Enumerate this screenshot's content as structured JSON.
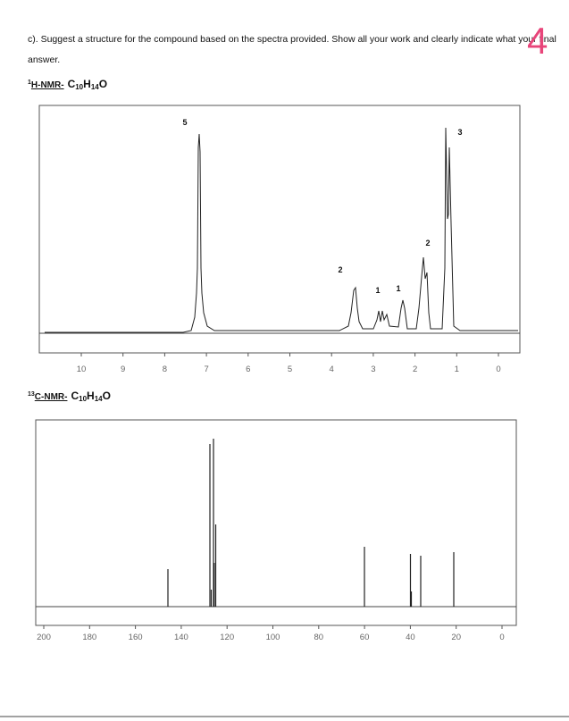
{
  "question": {
    "line1": "c).  Suggest a structure for the compound based on the spectra provided. Show all your work and clearly indicate what your final",
    "line2": "answer."
  },
  "page_number": "4",
  "h_nmr": {
    "heading": {
      "sup": "1",
      "label": "H-NMR-",
      "formula": [
        "C",
        "10",
        "H",
        "14",
        "O"
      ]
    },
    "integrations": [
      "5",
      "2",
      "1",
      "1",
      "2",
      "3"
    ],
    "ticks": [
      10,
      9,
      8,
      7,
      6,
      5,
      4,
      3,
      2,
      1,
      0
    ]
  },
  "c_nmr": {
    "heading": {
      "sup": "13",
      "label": "C-NMR-",
      "formula": [
        "C",
        "10",
        "H",
        "14",
        "O"
      ]
    },
    "ticks": [
      200,
      180,
      160,
      140,
      120,
      100,
      80,
      60,
      40,
      20,
      0
    ]
  }
}
